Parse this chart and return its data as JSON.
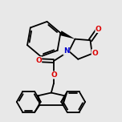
{
  "bg_color": "#e8e8e8",
  "bond_color": "#000000",
  "bond_width": 1.3,
  "atom_colors": {
    "O": "#dd0000",
    "N": "#0000cc",
    "C": "#000000"
  },
  "font_size_atom": 6.5,
  "fig_bg": "#e8e8e8"
}
